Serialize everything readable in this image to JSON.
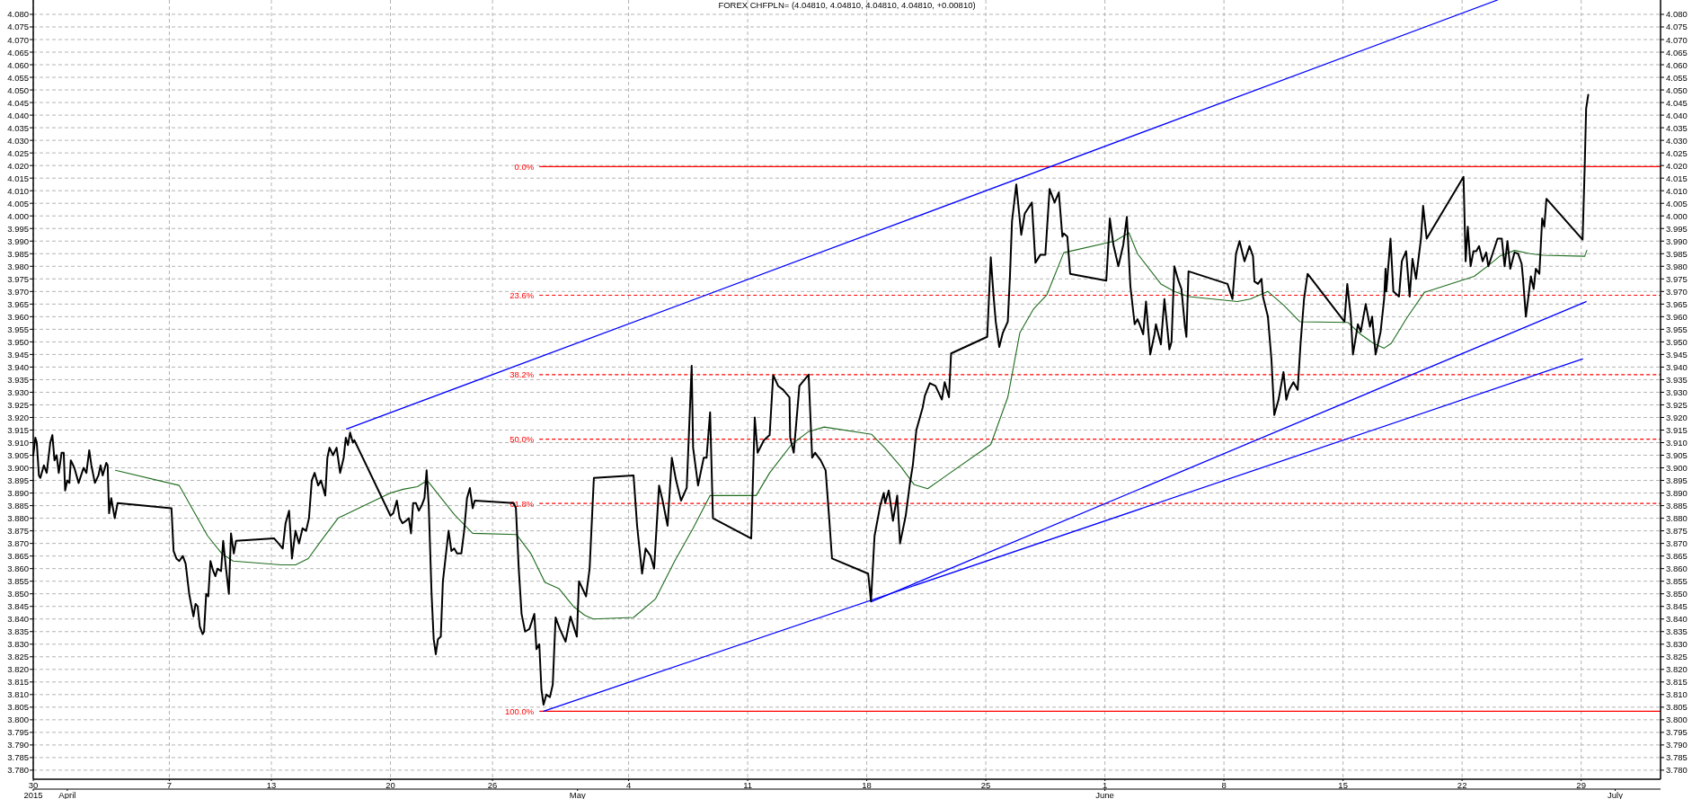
{
  "chart_data": {
    "type": "line",
    "title": "FOREX CHFPLN= (4.04810, 4.04810, 4.04810, 4.04810, +0.00810)",
    "xlim": [
      "2015-03-30",
      "2015-07-03T16:00"
    ],
    "ylim": [
      3.7764,
      4.0857
    ],
    "y2lim": [
      3.7764,
      4.0857
    ],
    "xticks": [
      {
        "value": "2015-03-30",
        "label": "30"
      },
      {
        "value": "2015-04-07",
        "label": "7"
      },
      {
        "value": "2015-04-13",
        "label": "13"
      },
      {
        "value": "2015-04-20",
        "label": "20"
      },
      {
        "value": "2015-04-26",
        "label": "26"
      },
      {
        "value": "2015-05-04",
        "label": "4"
      },
      {
        "value": "2015-05-11",
        "label": "11"
      },
      {
        "value": "2015-05-18",
        "label": "18"
      },
      {
        "value": "2015-05-25",
        "label": "25"
      },
      {
        "value": "2015-06-01",
        "label": "1"
      },
      {
        "value": "2015-06-08",
        "label": "8"
      },
      {
        "value": "2015-06-15",
        "label": "15"
      },
      {
        "value": "2015-06-22",
        "label": "22"
      },
      {
        "value": "2015-06-29",
        "label": "29"
      }
    ],
    "x2lim": [
      "2015-03-30",
      "2015-07-03T16:00"
    ],
    "x2ticks": [
      {
        "value": "2015-03-30",
        "label": "2015"
      },
      {
        "value": "2015-04",
        "label": "April"
      },
      {
        "value": "2015-05",
        "label": "May"
      },
      {
        "value": "2015-06",
        "label": "June"
      },
      {
        "value": "2015-07",
        "label": "July"
      }
    ],
    "yticks": [
      {
        "value": 3.78,
        "label": "3.780"
      },
      {
        "value": 3.785,
        "label": "3.785"
      },
      {
        "value": 3.79,
        "label": "3.790"
      },
      {
        "value": 3.795,
        "label": "3.795"
      },
      {
        "value": 3.8,
        "label": "3.800"
      },
      {
        "value": 3.805,
        "label": "3.805"
      },
      {
        "value": 3.81,
        "label": "3.810"
      },
      {
        "value": 3.815,
        "label": "3.815"
      },
      {
        "value": 3.82,
        "label": "3.820"
      },
      {
        "value": 3.825,
        "label": "3.825"
      },
      {
        "value": 3.83,
        "label": "3.830"
      },
      {
        "value": 3.835,
        "label": "3.835"
      },
      {
        "value": 3.84,
        "label": "3.840"
      },
      {
        "value": 3.845,
        "label": "3.845"
      },
      {
        "value": 3.85,
        "label": "3.850"
      },
      {
        "value": 3.855,
        "label": "3.855"
      },
      {
        "value": 3.86,
        "label": "3.860"
      },
      {
        "value": 3.865,
        "label": "3.865"
      },
      {
        "value": 3.87,
        "label": "3.870"
      },
      {
        "value": 3.875,
        "label": "3.875"
      },
      {
        "value": 3.88,
        "label": "3.880"
      },
      {
        "value": 3.885,
        "label": "3.885"
      },
      {
        "value": 3.89,
        "label": "3.890"
      },
      {
        "value": 3.895,
        "label": "3.895"
      },
      {
        "value": 3.9,
        "label": "3.900"
      },
      {
        "value": 3.905,
        "label": "3.905"
      },
      {
        "value": 3.91,
        "label": "3.910"
      },
      {
        "value": 3.915,
        "label": "3.915"
      },
      {
        "value": 3.92,
        "label": "3.920"
      },
      {
        "value": 3.925,
        "label": "3.925"
      },
      {
        "value": 3.93,
        "label": "3.930"
      },
      {
        "value": 3.935,
        "label": "3.935"
      },
      {
        "value": 3.94,
        "label": "3.940"
      },
      {
        "value": 3.945,
        "label": "3.945"
      },
      {
        "value": 3.95,
        "label": "3.950"
      },
      {
        "value": 3.955,
        "label": "3.955"
      },
      {
        "value": 3.96,
        "label": "3.960"
      },
      {
        "value": 3.965,
        "label": "3.965"
      },
      {
        "value": 3.97,
        "label": "3.970"
      },
      {
        "value": 3.975,
        "label": "3.975"
      },
      {
        "value": 3.98,
        "label": "3.980"
      },
      {
        "value": 3.985,
        "label": "3.985"
      },
      {
        "value": 3.99,
        "label": "3.990"
      },
      {
        "value": 3.995,
        "label": "3.995"
      },
      {
        "value": 4.0,
        "label": "4.000"
      },
      {
        "value": 4.005,
        "label": "4.005"
      },
      {
        "value": 4.01,
        "label": "4.010"
      },
      {
        "value": 4.015,
        "label": "4.015"
      },
      {
        "value": 4.02,
        "label": "4.020"
      },
      {
        "value": 4.025,
        "label": "4.025"
      },
      {
        "value": 4.03,
        "label": "4.030"
      },
      {
        "value": 4.035,
        "label": "4.035"
      },
      {
        "value": 4.04,
        "label": "4.040"
      },
      {
        "value": 4.045,
        "label": "4.045"
      },
      {
        "value": 4.05,
        "label": "4.050"
      },
      {
        "value": 4.055,
        "label": "4.055"
      },
      {
        "value": 4.06,
        "label": "4.060"
      },
      {
        "value": 4.065,
        "label": "4.065"
      },
      {
        "value": 4.07,
        "label": "4.070"
      },
      {
        "value": 4.075,
        "label": "4.075"
      },
      {
        "value": 4.08,
        "label": "4.080"
      }
    ],
    "y2ticks": [
      {
        "value": 3.78,
        "label": "3.780"
      },
      {
        "value": 3.785,
        "label": "3.785"
      },
      {
        "value": 3.79,
        "label": "3.790"
      },
      {
        "value": 3.795,
        "label": "3.795"
      },
      {
        "value": 3.8,
        "label": "3.800"
      },
      {
        "value": 3.805,
        "label": "3.805"
      },
      {
        "value": 3.81,
        "label": "3.810"
      },
      {
        "value": 3.815,
        "label": "3.815"
      },
      {
        "value": 3.82,
        "label": "3.820"
      },
      {
        "value": 3.825,
        "label": "3.825"
      },
      {
        "value": 3.83,
        "label": "3.830"
      },
      {
        "value": 3.835,
        "label": "3.835"
      },
      {
        "value": 3.84,
        "label": "3.840"
      },
      {
        "value": 3.845,
        "label": "3.845"
      },
      {
        "value": 3.85,
        "label": "3.850"
      },
      {
        "value": 3.855,
        "label": "3.855"
      },
      {
        "value": 3.86,
        "label": "3.860"
      },
      {
        "value": 3.865,
        "label": "3.865"
      },
      {
        "value": 3.87,
        "label": "3.870"
      },
      {
        "value": 3.875,
        "label": "3.875"
      },
      {
        "value": 3.88,
        "label": "3.880"
      },
      {
        "value": 3.885,
        "label": "3.885"
      },
      {
        "value": 3.89,
        "label": "3.890"
      },
      {
        "value": 3.895,
        "label": "3.895"
      },
      {
        "value": 3.9,
        "label": "3.900"
      },
      {
        "value": 3.905,
        "label": "3.905"
      },
      {
        "value": 3.91,
        "label": "3.910"
      },
      {
        "value": 3.915,
        "label": "3.915"
      },
      {
        "value": 3.92,
        "label": "3.920"
      },
      {
        "value": 3.925,
        "label": "3.925"
      },
      {
        "value": 3.93,
        "label": "3.930"
      },
      {
        "value": 3.935,
        "label": "3.935"
      },
      {
        "value": 3.94,
        "label": "3.940"
      },
      {
        "value": 3.945,
        "label": "3.945"
      },
      {
        "value": 3.95,
        "label": "3.950"
      },
      {
        "value": 3.955,
        "label": "3.955"
      },
      {
        "value": 3.96,
        "label": "3.960"
      },
      {
        "value": 3.965,
        "label": "3.965"
      },
      {
        "value": 3.97,
        "label": "3.970"
      },
      {
        "value": 3.975,
        "label": "3.975"
      },
      {
        "value": 3.98,
        "label": "3.980"
      },
      {
        "value": 3.985,
        "label": "3.985"
      },
      {
        "value": 3.99,
        "label": "3.990"
      },
      {
        "value": 3.995,
        "label": "3.995"
      },
      {
        "value": 4.0,
        "label": "4.000"
      },
      {
        "value": 4.005,
        "label": "4.005"
      },
      {
        "value": 4.01,
        "label": "4.010"
      },
      {
        "value": 4.015,
        "label": "4.015"
      },
      {
        "value": 4.02,
        "label": "4.020"
      },
      {
        "value": 4.025,
        "label": "4.025"
      },
      {
        "value": 4.03,
        "label": "4.030"
      },
      {
        "value": 4.035,
        "label": "4.035"
      },
      {
        "value": 4.04,
        "label": "4.040"
      },
      {
        "value": 4.045,
        "label": "4.045"
      },
      {
        "value": 4.05,
        "label": "4.050"
      },
      {
        "value": 4.055,
        "label": "4.055"
      },
      {
        "value": 4.06,
        "label": "4.060"
      },
      {
        "value": 4.065,
        "label": "4.065"
      },
      {
        "value": 4.07,
        "label": "4.070"
      },
      {
        "value": 4.075,
        "label": "4.075"
      },
      {
        "value": 4.08,
        "label": "4.080"
      }
    ],
    "grid": true,
    "marker": "none",
    "line_style": "solid",
    "ref_lines": [
      {
        "axis": "y",
        "value": 4.0196,
        "color": "#ff0000",
        "line_style": "solid"
      },
      {
        "axis": "y",
        "value": 3.9685,
        "color": "#ff0000",
        "line_style": "dashed"
      },
      {
        "axis": "y",
        "value": 3.937,
        "color": "#ff0000",
        "line_style": "dashed"
      },
      {
        "axis": "y",
        "value": 3.9114,
        "color": "#ff0000",
        "line_style": "dashed"
      },
      {
        "axis": "y",
        "value": 3.8859,
        "color": "#ff0000",
        "line_style": "dashed"
      },
      {
        "axis": "y",
        "value": 3.8034,
        "color": "#ff0000",
        "line_style": "solid"
      }
    ],
    "annotations": [
      "0.0%",
      "23.6%",
      "38.2%",
      "50.0%",
      "61.8%",
      "100.0%"
    ],
    "series": [
      {
        "color": "#000000",
        "x": [
          "2015-03-30T00:00",
          "2015-03-30T03:00",
          "2015-03-30T05:00",
          "2015-03-30T08:00",
          "2015-03-30T10:00",
          "2015-03-30T15:00",
          "2015-03-30T19:00",
          "2015-03-31T00:00",
          "2015-03-31T03:00",
          "2015-03-31T06:00",
          "2015-03-31T09:00",
          "2015-03-31T12:00",
          "2015-03-31T16:00",
          "2015-03-31T19:00",
          "2015-03-31T21:00",
          "2015-04-01T00:00",
          "2015-04-01T03:00",
          "2015-04-01T05:00",
          "2015-04-01T10:00",
          "2015-04-01T16:00",
          "2015-04-01T23:00",
          "2015-04-02T03:00",
          "2015-04-02T07:00",
          "2015-04-02T10:00",
          "2015-04-02T15:00",
          "2015-04-02T20:00",
          "2015-04-02T23:00",
          "2015-04-03T02:00",
          "2015-04-03T07:00",
          "2015-04-03T09:00",
          "2015-04-03T11:00",
          "2015-04-03T14:00",
          "2015-04-03T19:00",
          "2015-04-03T23:00",
          "2015-04-07T03:00",
          "2015-04-07T06:00",
          "2015-04-07T10:00",
          "2015-04-07T14:00",
          "2015-04-07T19:00",
          "2015-04-07T23:00",
          "2015-04-08T04:00",
          "2015-04-08T10:00",
          "2015-04-08T13:00",
          "2015-04-08T16:00",
          "2015-04-08T19:00",
          "2015-04-08T23:00",
          "2015-04-09T01:00",
          "2015-04-09T04:00",
          "2015-04-09T07:00",
          "2015-04-09T10:00",
          "2015-04-09T14:00",
          "2015-04-09T17:00",
          "2015-04-09T20:00",
          "2015-04-10T01:00",
          "2015-04-10T04:00",
          "2015-04-10T08:00",
          "2015-04-10T12:00",
          "2015-04-10T15:00",
          "2015-04-10T19:00",
          "2015-04-10T22:00",
          "2015-04-13T04:00",
          "2015-04-13T10:00",
          "2015-04-13T16:00",
          "2015-04-13T20:00",
          "2015-04-14T01:00",
          "2015-04-14T05:00",
          "2015-04-14T10:00",
          "2015-04-14T15:00",
          "2015-04-14T20:00",
          "2015-04-15T01:00",
          "2015-04-15T05:00",
          "2015-04-15T09:00",
          "2015-04-15T13:00",
          "2015-04-15T18:00",
          "2015-04-15T22:00",
          "2015-04-16T04:00",
          "2015-04-16T07:00",
          "2015-04-16T10:00",
          "2015-04-16T15:00",
          "2015-04-16T20:00",
          "2015-04-17T01:00",
          "2015-04-17T06:00",
          "2015-04-17T09:00",
          "2015-04-17T12:00",
          "2015-04-17T15:00",
          "2015-04-17T19:00",
          "2015-04-17T21:00",
          "2015-04-20T00:00",
          "2015-04-20T04:00",
          "2015-04-20T09:00",
          "2015-04-20T13:00",
          "2015-04-20T17:00",
          "2015-04-20T22:00",
          "2015-04-21T02:00",
          "2015-04-21T05:00",
          "2015-04-21T08:00",
          "2015-04-21T12:00",
          "2015-04-21T16:00",
          "2015-04-21T20:00",
          "2015-04-22T00:00",
          "2015-04-22T03:00",
          "2015-04-22T06:00",
          "2015-04-22T10:00",
          "2015-04-22T13:00",
          "2015-04-22T16:00",
          "2015-04-22T19:00",
          "2015-04-22T23:00",
          "2015-04-23T02:00",
          "2015-04-23T06:00",
          "2015-04-23T10:00",
          "2015-04-23T14:00",
          "2015-04-23T18:00",
          "2015-04-23T22:00",
          "2015-04-24T04:00",
          "2015-04-24T08:00",
          "2015-04-24T12:00",
          "2015-04-24T16:00",
          "2015-04-24T20:00",
          "2015-04-24T23:00",
          "2015-04-27T06:00",
          "2015-04-27T09:00",
          "2015-04-27T13:00",
          "2015-04-27T17:00",
          "2015-04-27T22:00",
          "2015-04-28T04:00",
          "2015-04-28T11:00",
          "2015-04-28T14:00",
          "2015-04-28T18:00",
          "2015-04-28T21:00",
          "2015-04-29T00:00",
          "2015-04-29T04:00",
          "2015-04-29T09:00",
          "2015-04-29T13:00",
          "2015-04-29T17:00",
          "2015-04-29T23:00",
          "2015-04-30T07:00",
          "2015-04-30T14:00",
          "2015-04-30T23:00",
          "2015-05-01T02:00",
          "2015-05-01T12:00",
          "2015-05-01T17:00",
          "2015-05-01T23:00",
          "2015-05-04T07:00",
          "2015-05-04T12:00",
          "2015-05-04T19:00",
          "2015-05-05T00:00",
          "2015-05-05T07:00",
          "2015-05-05T12:00",
          "2015-05-05T19:00",
          "2015-05-06T00:00",
          "2015-05-06T07:00",
          "2015-05-06T13:00",
          "2015-05-06T19:00",
          "2015-05-07T02:00",
          "2015-05-07T10:00",
          "2015-05-07T17:00",
          "2015-05-07T19:00",
          "2015-05-08T02:00",
          "2015-05-08T10:00",
          "2015-05-08T14:00",
          "2015-05-08T19:00",
          "2015-05-08T23:00",
          "2015-05-11T05:00",
          "2015-05-11T10:00",
          "2015-05-11T14:00",
          "2015-05-11T23:00",
          "2015-05-12T07:00",
          "2015-05-12T12:00",
          "2015-05-12T19:00",
          "2015-05-13T02:00",
          "2015-05-13T11:00",
          "2015-05-13T12:00",
          "2015-05-13T17:00",
          "2015-05-14T01:00",
          "2015-05-14T14:00",
          "2015-05-14T19:00",
          "2015-05-14T23:00",
          "2015-05-15T07:00",
          "2015-05-15T14:00",
          "2015-05-15T19:00",
          "2015-05-15T23:00",
          "2015-05-18T02:00",
          "2015-05-18T06:00",
          "2015-05-18T11:00",
          "2015-05-18T19:00",
          "2015-05-19T00:00",
          "2015-05-19T02:00",
          "2015-05-19T07:00",
          "2015-05-19T13:00",
          "2015-05-19T19:00",
          "2015-05-19T23:00",
          "2015-05-20T07:00",
          "2015-05-20T13:00",
          "2015-05-20T17:00",
          "2015-05-20T22:00",
          "2015-05-21T02:00",
          "2015-05-21T07:00",
          "2015-05-21T10:00",
          "2015-05-21T17:00",
          "2015-05-22T01:00",
          "2015-05-22T10:00",
          "2015-05-22T14:00",
          "2015-05-22T20:00",
          "2015-05-22T23:00",
          "2015-05-25T02:00",
          "2015-05-25T07:00",
          "2015-05-25T11:00",
          "2015-05-25T14:00",
          "2015-05-25T19:00",
          "2015-05-26T00:00",
          "2015-05-26T07:00",
          "2015-05-26T10:00",
          "2015-05-26T13:00",
          "2015-05-26T19:00",
          "2015-05-27T02:00",
          "2015-05-27T07:00",
          "2015-05-27T17:00",
          "2015-05-27T22:00",
          "2015-05-28T05:00",
          "2015-05-28T12:00",
          "2015-05-28T18:00",
          "2015-05-29T01:00",
          "2015-05-29T07:00",
          "2015-05-29T12:00",
          "2015-05-29T14:00",
          "2015-05-29T19:00",
          "2015-05-29T23:00",
          "2015-06-01T02:00",
          "2015-06-01T07:00",
          "2015-06-01T12:00",
          "2015-06-01T19:00",
          "2015-06-02T02:00",
          "2015-06-02T07:00",
          "2015-06-02T12:00",
          "2015-06-02T18:00",
          "2015-06-02T22:00",
          "2015-06-03T01:00",
          "2015-06-03T06:00",
          "2015-06-03T10:00",
          "2015-06-03T16:00",
          "2015-06-03T22:00",
          "2015-06-04T00:00",
          "2015-06-04T07:00",
          "2015-06-04T12:00",
          "2015-06-04T19:00",
          "2015-06-04T22:00",
          "2015-06-05T02:00",
          "2015-06-05T07:00",
          "2015-06-05T12:00",
          "2015-06-05T17:00",
          "2015-06-05T19:00",
          "2015-06-05T22:00",
          "2015-06-08T05:00",
          "2015-06-08T12:00",
          "2015-06-08T17:00",
          "2015-06-08T22:00",
          "2015-06-09T05:00",
          "2015-06-09T12:00",
          "2015-06-09T17:00",
          "2015-06-09T19:00",
          "2015-06-10T00:00",
          "2015-06-10T05:00",
          "2015-06-10T07:00",
          "2015-06-10T14:00",
          "2015-06-10T19:00",
          "2015-06-10T23:00",
          "2015-06-11T05:00",
          "2015-06-11T12:00",
          "2015-06-11T16:00",
          "2015-06-11T20:00",
          "2015-06-12T02:00",
          "2015-06-12T08:00",
          "2015-06-12T12:00",
          "2015-06-12T17:00",
          "2015-06-12T22:00",
          "2015-06-15T02:00",
          "2015-06-15T06:00",
          "2015-06-15T11:00",
          "2015-06-15T14:00",
          "2015-06-15T21:00",
          "2015-06-16T01:00",
          "2015-06-16T08:00",
          "2015-06-16T14:00",
          "2015-06-16T17:00",
          "2015-06-16T22:00",
          "2015-06-17T05:00",
          "2015-06-17T10:00",
          "2015-06-17T12:00",
          "2015-06-17T13:00",
          "2015-06-17T19:00",
          "2015-06-17T23:00",
          "2015-06-18T07:00",
          "2015-06-18T11:00",
          "2015-06-18T17:00",
          "2015-06-18T22:00",
          "2015-06-19T02:00",
          "2015-06-19T07:00",
          "2015-06-19T14:00",
          "2015-06-19T17:00",
          "2015-06-19T22:00",
          "2015-06-22T02:00",
          "2015-06-22T05:00",
          "2015-06-22T08:00",
          "2015-06-22T12:00",
          "2015-06-22T16:00",
          "2015-06-22T20:00",
          "2015-06-23T00:00",
          "2015-06-23T05:00",
          "2015-06-23T10:00",
          "2015-06-23T13:00",
          "2015-06-23T19:00",
          "2015-06-24T02:00",
          "2015-06-24T08:00",
          "2015-06-24T12:00",
          "2015-06-24T16:00",
          "2015-06-24T20:00",
          "2015-06-25T02:00",
          "2015-06-25T07:00",
          "2015-06-25T12:00",
          "2015-06-25T14:00",
          "2015-06-25T18:00",
          "2015-06-25T22:00",
          "2015-06-26T01:00",
          "2015-06-26T05:00",
          "2015-06-26T08:00",
          "2015-06-26T13:00",
          "2015-06-26T17:00",
          "2015-06-26T20:00",
          "2015-06-26T23:00",
          "2015-06-29T02:00",
          "2015-06-29T05:00",
          "2015-06-29T07:00",
          "2015-06-29T10:00"
        ],
        "values": [
          3.905,
          3.912,
          3.91,
          3.897,
          3.896,
          3.901,
          3.898,
          3.91,
          3.913,
          3.903,
          3.905,
          3.898,
          3.906,
          3.906,
          3.891,
          3.895,
          3.894,
          3.903,
          3.9,
          3.894,
          3.9,
          3.898,
          3.907,
          3.901,
          3.894,
          3.897,
          3.901,
          3.897,
          3.902,
          3.901,
          3.882,
          3.888,
          3.88,
          3.886,
          3.884,
          3.867,
          3.864,
          3.863,
          3.865,
          3.862,
          3.85,
          3.841,
          3.846,
          3.845,
          3.837,
          3.834,
          3.835,
          3.85,
          3.849,
          3.863,
          3.859,
          3.857,
          3.86,
          3.859,
          3.871,
          3.86,
          3.85,
          3.874,
          3.866,
          3.871,
          3.872,
          3.87,
          3.868,
          3.878,
          3.883,
          3.864,
          3.875,
          3.87,
          3.876,
          3.875,
          3.88,
          3.895,
          3.898,
          3.893,
          3.895,
          3.889,
          3.904,
          3.908,
          3.905,
          3.908,
          3.898,
          3.904,
          3.912,
          3.909,
          3.914,
          3.91,
          3.911,
          3.881,
          3.882,
          3.887,
          3.88,
          3.878,
          3.879,
          3.88,
          3.874,
          3.886,
          3.886,
          3.883,
          3.885,
          3.888,
          3.899,
          3.885,
          3.85,
          3.832,
          3.826,
          3.832,
          3.833,
          3.855,
          3.865,
          3.875,
          3.867,
          3.868,
          3.866,
          3.866,
          3.875,
          3.888,
          3.892,
          3.884,
          3.887,
          3.886,
          3.884,
          3.86,
          3.842,
          3.835,
          3.836,
          3.842,
          3.828,
          3.83,
          3.812,
          3.806,
          3.81,
          3.809,
          3.814,
          3.8406,
          3.836,
          3.831,
          3.841,
          3.833,
          3.855,
          3.849,
          3.86,
          3.896,
          3.897,
          3.877,
          3.858,
          3.868,
          3.865,
          3.86,
          3.893,
          3.887,
          3.877,
          3.904,
          3.895,
          3.887,
          3.892,
          3.9405,
          3.908,
          3.893,
          3.904,
          3.904,
          3.922,
          3.88,
          3.872,
          3.92,
          3.906,
          3.911,
          3.913,
          3.9368,
          3.9325,
          3.931,
          3.928,
          3.912,
          3.906,
          3.9325,
          3.937,
          3.904,
          3.906,
          3.903,
          3.899,
          3.88,
          3.864,
          3.858,
          3.847,
          3.873,
          3.885,
          3.89,
          3.886,
          3.891,
          3.879,
          3.889,
          3.87,
          3.881,
          3.894,
          3.901,
          3.915,
          3.919,
          3.924,
          3.9286,
          3.9336,
          3.9325,
          3.9271,
          3.934,
          3.928,
          3.9454,
          3.952,
          3.9836,
          3.968,
          3.958,
          3.948,
          3.9536,
          3.958,
          3.9757,
          3.998,
          4.0125,
          3.9925,
          4.001,
          4.0053,
          3.9814,
          3.9846,
          3.9846,
          4.0107,
          4.0053,
          4.0093,
          3.9918,
          3.993,
          3.9918,
          3.977,
          3.9743,
          3.999,
          3.9886,
          3.98,
          3.9886,
          3.9996,
          3.972,
          3.957,
          3.959,
          3.957,
          3.953,
          3.966,
          3.945,
          3.953,
          3.957,
          3.949,
          3.967,
          3.947,
          3.95,
          3.98,
          3.975,
          3.971,
          3.956,
          3.952,
          3.978,
          3.973,
          3.967,
          3.985,
          3.99,
          3.982,
          3.988,
          3.984,
          3.974,
          3.973,
          3.975,
          3.968,
          3.96,
          3.943,
          3.921,
          3.927,
          3.938,
          3.927,
          3.931,
          3.934,
          3.931,
          3.949,
          3.967,
          3.977,
          3.958,
          3.973,
          3.96,
          3.945,
          3.957,
          3.954,
          3.965,
          3.956,
          3.96,
          3.945,
          3.954,
          3.967,
          3.979,
          3.97,
          3.991,
          3.97,
          3.968,
          3.982,
          3.986,
          3.968,
          3.983,
          3.975,
          3.991,
          4.004,
          3.991,
          4.0155,
          3.982,
          3.9957,
          3.98,
          3.986,
          3.986,
          3.988,
          3.982,
          3.9855,
          3.98,
          3.985,
          3.991,
          3.991,
          3.98,
          3.99,
          3.979,
          3.9855,
          3.985,
          3.981,
          3.975,
          3.96,
          3.969,
          3.976,
          3.971,
          3.979,
          3.977,
          3.999,
          3.9957,
          4.0068,
          3.9906,
          4.0195,
          4.0426,
          4.0481
        ]
      },
      {
        "color": "#1e6b1e",
        "x": [
          "2015-04-03T20:00",
          "2015-04-07T14:00",
          "2015-04-08T10:00",
          "2015-04-09T06:00",
          "2015-04-10T02:00",
          "2015-04-10T18:00",
          "2015-04-13T14:00",
          "2015-04-14T10:00",
          "2015-04-15T04:00",
          "2015-04-15T22:00",
          "2015-04-16T22:00",
          "2015-04-20T00:00",
          "2015-04-20T18:00",
          "2015-04-21T14:00",
          "2015-04-22T04:00",
          "2015-04-22T18:00",
          "2015-04-23T18:00",
          "2015-04-24T20:00",
          "2015-04-27T10:00",
          "2015-04-28T06:00",
          "2015-04-29T02:00",
          "2015-04-29T22:00",
          "2015-04-30T18:00",
          "2015-05-01T10:00",
          "2015-05-01T22:00",
          "2015-05-04T07:00",
          "2015-05-05T14:00",
          "2015-05-06T17:00",
          "2015-05-07T19:00",
          "2015-05-08T19:00",
          "2015-05-11T12:00",
          "2015-05-12T07:00",
          "2015-05-13T14:00",
          "2015-05-14T14:00",
          "2015-05-15T12:00",
          "2015-05-18T07:00",
          "2015-05-19T02:00",
          "2015-05-20T00:00",
          "2015-05-20T19:00",
          "2015-05-21T14:00",
          "2015-05-22T10:00",
          "2015-05-25T07:00",
          "2015-05-26T07:00",
          "2015-05-27T00:00",
          "2015-05-27T19:00",
          "2015-05-28T14:00",
          "2015-05-29T14:00",
          "2015-06-01T14:00",
          "2015-06-02T10:00",
          "2015-06-02T22:00",
          "2015-06-04T07:00",
          "2015-06-05T02:00",
          "2015-06-05T22:00",
          "2015-06-08T19:00",
          "2015-06-09T13:00",
          "2015-06-10T14:00",
          "2015-06-11T12:00",
          "2015-06-12T11:00",
          "2015-06-15T07:00",
          "2015-06-16T01:00",
          "2015-06-16T19:00",
          "2015-06-17T10:00",
          "2015-06-17T20:00",
          "2015-06-18T18:00",
          "2015-06-19T19:00",
          "2015-06-22T17:00",
          "2015-06-23T14:00",
          "2015-06-24T05:00",
          "2015-06-25T02:00",
          "2015-06-26T00:00",
          "2015-06-26T18:00",
          "2015-06-29T05:00",
          "2015-06-29T08:00"
        ],
        "values": [
          3.899,
          3.893,
          3.883,
          3.873,
          3.866,
          3.863,
          3.8615,
          3.8615,
          3.864,
          3.871,
          3.88,
          3.89,
          3.8915,
          3.8925,
          3.895,
          3.89,
          3.8815,
          3.874,
          3.8735,
          3.866,
          3.8545,
          3.852,
          3.845,
          3.8415,
          3.84,
          3.8406,
          3.848,
          3.863,
          3.876,
          3.889,
          3.889,
          3.898,
          3.9093,
          3.9144,
          3.9162,
          3.9133,
          3.9077,
          3.9005,
          3.8933,
          3.8917,
          3.8957,
          3.9093,
          3.928,
          3.9536,
          3.9629,
          3.9686,
          3.9854,
          3.99,
          3.9933,
          3.985,
          3.973,
          3.97,
          3.968,
          3.966,
          3.967,
          3.97,
          3.9646,
          3.958,
          3.9577,
          3.953,
          3.9494,
          3.9475,
          3.9494,
          3.9595,
          3.9697,
          3.976,
          3.9805,
          3.984,
          3.9863,
          3.985,
          3.9844,
          3.984,
          3.9863
        ]
      },
      {
        "color": "#0000ff",
        "x": [
          "2015-04-17T10:00",
          "2015-06-24T02:00"
        ],
        "values": [
          3.9154,
          4.0857
        ]
      },
      {
        "color": "#0000ff",
        "x": [
          "2015-04-29T00:00",
          "2015-06-29T02:00"
        ],
        "values": [
          3.8034,
          3.9432
        ]
      },
      {
        "color": "#0000ff",
        "x": [
          "2015-05-18T06:00",
          "2015-06-29T07:00"
        ],
        "values": [
          3.8468,
          3.966
        ]
      }
    ]
  }
}
